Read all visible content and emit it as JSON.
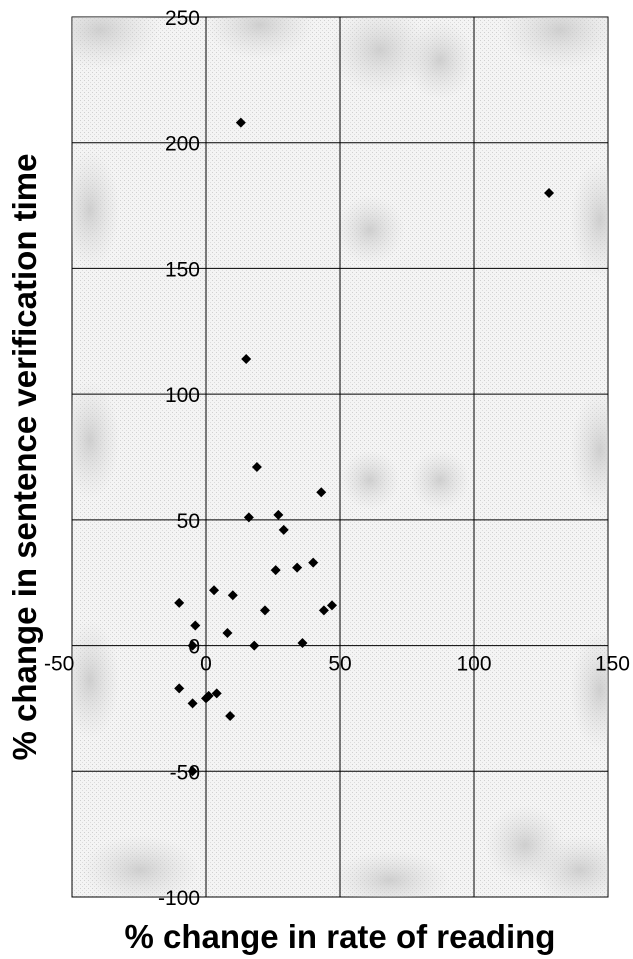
{
  "chart_data": {
    "type": "scatter",
    "title": "",
    "xlabel": "% change in rate of reading",
    "ylabel": "% change in sentence verification time",
    "xlim": [
      -50,
      150
    ],
    "ylim": [
      -100,
      250
    ],
    "x_ticks": [
      "-50",
      "0",
      "50",
      "100",
      "150"
    ],
    "y_ticks": [
      "-100",
      "-50",
      "0",
      "50",
      "100",
      "150",
      "200",
      "250"
    ],
    "grid": true,
    "marker": "diamond",
    "marker_color": "#000000",
    "points": [
      {
        "x": 13,
        "y": 208
      },
      {
        "x": 128,
        "y": 180
      },
      {
        "x": 15,
        "y": 114
      },
      {
        "x": 19,
        "y": 71
      },
      {
        "x": 43,
        "y": 61
      },
      {
        "x": 27,
        "y": 52
      },
      {
        "x": 16,
        "y": 51
      },
      {
        "x": 29,
        "y": 46
      },
      {
        "x": 40,
        "y": 33
      },
      {
        "x": 34,
        "y": 31
      },
      {
        "x": 26,
        "y": 30
      },
      {
        "x": 3,
        "y": 22
      },
      {
        "x": 10,
        "y": 20
      },
      {
        "x": -10,
        "y": 17
      },
      {
        "x": 47,
        "y": 16
      },
      {
        "x": 44,
        "y": 14
      },
      {
        "x": 22,
        "y": 14
      },
      {
        "x": -4,
        "y": 8
      },
      {
        "x": 8,
        "y": 5
      },
      {
        "x": -5,
        "y": 0
      },
      {
        "x": 18,
        "y": 0
      },
      {
        "x": 36,
        "y": 1
      },
      {
        "x": -10,
        "y": -17
      },
      {
        "x": 4,
        "y": -19
      },
      {
        "x": 1,
        "y": -20
      },
      {
        "x": 0,
        "y": -21
      },
      {
        "x": -5,
        "y": -23
      },
      {
        "x": 9,
        "y": -28
      },
      {
        "x": -5,
        "y": -50
      }
    ]
  }
}
